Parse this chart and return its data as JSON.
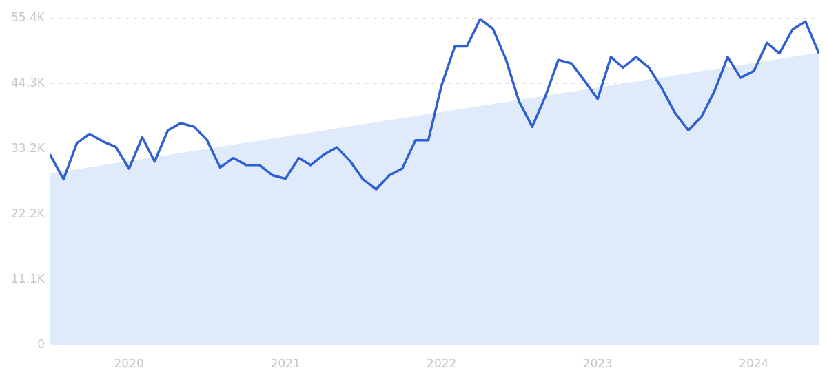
{
  "chart_data": {
    "type": "line",
    "x": [
      "2019-07",
      "2019-08",
      "2019-09",
      "2019-10",
      "2019-11",
      "2019-12",
      "2020-01",
      "2020-02",
      "2020-03",
      "2020-04",
      "2020-05",
      "2020-06",
      "2020-07",
      "2020-08",
      "2020-09",
      "2020-10",
      "2020-11",
      "2020-12",
      "2021-01",
      "2021-02",
      "2021-03",
      "2021-04",
      "2021-05",
      "2021-06",
      "2021-07",
      "2021-08",
      "2021-09",
      "2021-10",
      "2021-11",
      "2021-12",
      "2022-01",
      "2022-02",
      "2022-03",
      "2022-04",
      "2022-05",
      "2022-06",
      "2022-07",
      "2022-08",
      "2022-09",
      "2022-10",
      "2022-11",
      "2022-12",
      "2023-01",
      "2023-02",
      "2023-03",
      "2023-04",
      "2023-05",
      "2023-06",
      "2023-07",
      "2023-08",
      "2023-09",
      "2023-10",
      "2023-11",
      "2023-12",
      "2024-01",
      "2024-02",
      "2024-03",
      "2024-04",
      "2024-05",
      "2024-06"
    ],
    "series": [
      {
        "color": "#2f5fd0",
        "values": [
          32200,
          28100,
          34200,
          35800,
          34500,
          33600,
          29900,
          35200,
          31100,
          36400,
          37600,
          37000,
          34800,
          30100,
          31700,
          30500,
          30500,
          28800,
          28200,
          31700,
          30500,
          32300,
          33500,
          31200,
          28100,
          26400,
          28800,
          29900,
          34700,
          34700,
          44000,
          50600,
          50600,
          55200,
          53600,
          48300,
          41300,
          37000,
          42200,
          48300,
          47700,
          44800,
          41700,
          48800,
          47000,
          48800,
          47000,
          43400,
          39300,
          36400,
          38700,
          43000,
          48800,
          45300,
          46400,
          51200,
          49400,
          53500,
          54800,
          49500
        ]
      },
      {
        "type": "area",
        "color": "#dfeafb",
        "x": [
          "2019-07",
          "2024-06"
        ],
        "values": [
          29100,
          49500
        ]
      }
    ],
    "xlim": [
      "2019-07",
      "2024-06"
    ],
    "xticks": [
      "2020",
      "2021",
      "2022",
      "2023",
      "2024"
    ],
    "ylim": [
      0,
      55400
    ],
    "yticks": [
      0,
      {
        "value": 11100,
        "label": "11.1K"
      },
      {
        "value": 22200,
        "label": "22.2K"
      },
      {
        "value": 33200,
        "label": "33.2K"
      },
      {
        "value": 44300,
        "label": "44.3K"
      },
      {
        "value": 55400,
        "label": "55.4K"
      }
    ],
    "grid": "y",
    "legend": false,
    "marker": "none",
    "line_style": "solid"
  }
}
